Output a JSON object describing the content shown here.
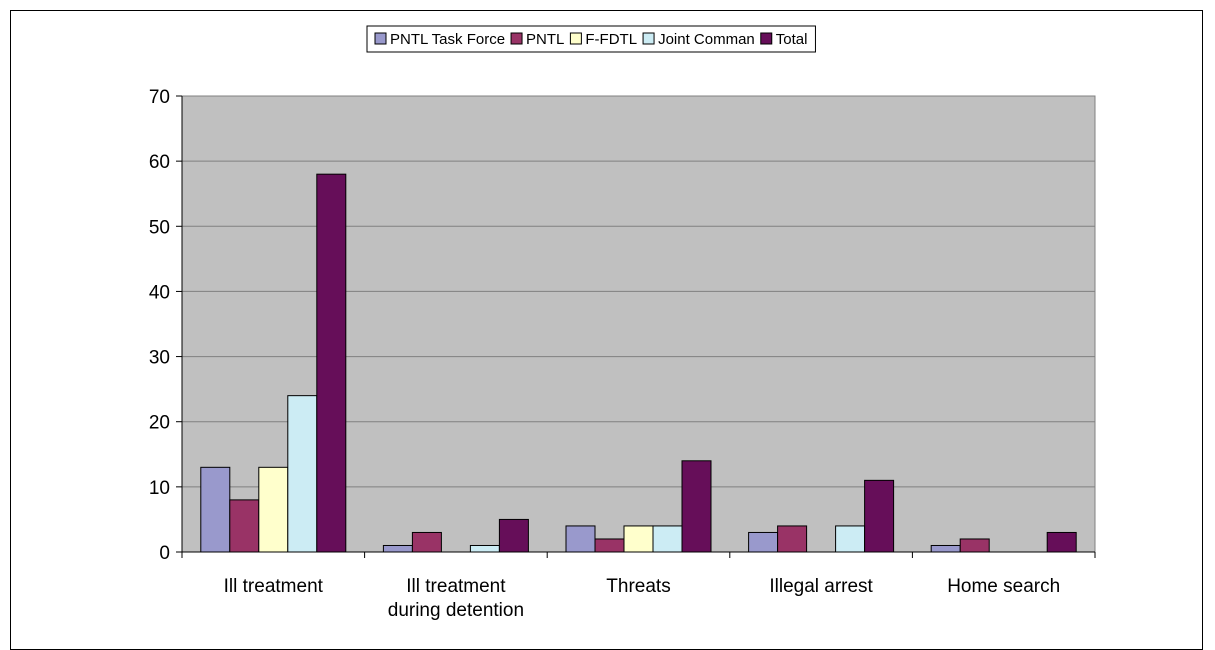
{
  "chart_data": {
    "type": "bar",
    "categories": [
      [
        "Ill treatment"
      ],
      [
        "Ill treatment",
        "during detention"
      ],
      [
        "Threats"
      ],
      [
        "Illegal arrest"
      ],
      [
        "Home search"
      ]
    ],
    "series": [
      {
        "name": "PNTL Task Force",
        "color": "#9999cc",
        "values": [
          13,
          1,
          4,
          3,
          1
        ]
      },
      {
        "name": "PNTL",
        "color": "#993366",
        "values": [
          8,
          3,
          2,
          4,
          2
        ]
      },
      {
        "name": "F-FDTL",
        "color": "#ffffcc",
        "values": [
          13,
          0,
          4,
          0,
          0
        ]
      },
      {
        "name": "Joint Comman",
        "color": "#ccecf4",
        "values": [
          24,
          1,
          4,
          4,
          0
        ]
      },
      {
        "name": "Total",
        "color": "#660e59",
        "values": [
          58,
          5,
          14,
          11,
          3
        ]
      }
    ],
    "ylim": [
      0,
      70
    ],
    "yticks": [
      0,
      10,
      20,
      30,
      40,
      50,
      60,
      70
    ],
    "grid": true,
    "legend": "top-center",
    "plot_background": "#c0c0c0"
  }
}
